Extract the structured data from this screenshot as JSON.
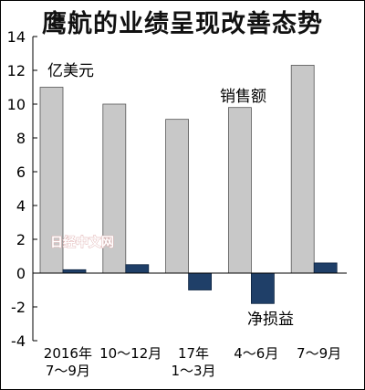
{
  "chart_data": {
    "type": "bar",
    "title": "鹰航的业绩呈现改善态势",
    "unit_label": "亿美元",
    "categories": [
      [
        "2016年",
        "7～9月"
      ],
      [
        "10～12月"
      ],
      [
        "17年",
        "1～3月"
      ],
      [
        "4～6月"
      ],
      [
        "7～9月"
      ]
    ],
    "series": [
      {
        "name": "销售额",
        "values": [
          11.0,
          10.0,
          9.1,
          9.8,
          12.3
        ],
        "color": "#c8c8c8"
      },
      {
        "name": "净损益",
        "values": [
          0.2,
          0.5,
          -1.0,
          -1.8,
          0.6
        ],
        "color": "#1f3f68"
      }
    ],
    "ylim": [
      -4,
      14
    ],
    "yticks": [
      14,
      12,
      10,
      8,
      6,
      4,
      2,
      0,
      -2,
      -4
    ],
    "watermark": "日经中文网"
  }
}
